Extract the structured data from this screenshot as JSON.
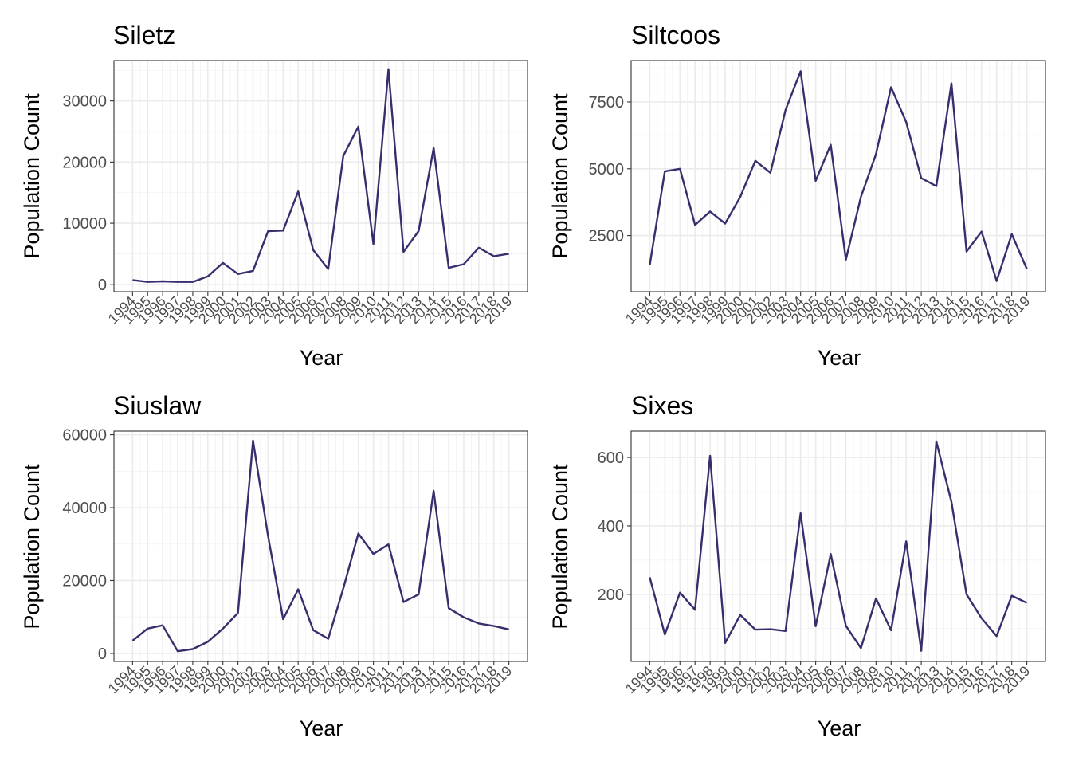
{
  "chart_data": [
    {
      "type": "line",
      "title": "Siletz",
      "xlabel": "Year",
      "ylabel": "Population Count",
      "x": [
        "1994",
        "1995",
        "1996",
        "1997",
        "1998",
        "1999",
        "2000",
        "2001",
        "2002",
        "2003",
        "2004",
        "2005",
        "2006",
        "2007",
        "2008",
        "2009",
        "2010",
        "2011",
        "2012",
        "2013",
        "2014",
        "2015",
        "2016",
        "2017",
        "2018",
        "2019"
      ],
      "series": [
        {
          "values": [
            700,
            400,
            500,
            400,
            400,
            1300,
            3500,
            1700,
            2200,
            8700,
            8800,
            15200,
            5600,
            2500,
            21000,
            25800,
            6600,
            35200,
            5300,
            8700,
            22300,
            2700,
            3300,
            6000,
            4600,
            5000
          ]
        }
      ],
      "ylim": [
        -1200,
        36600
      ],
      "yticks": [
        0,
        10000,
        20000,
        30000
      ],
      "ytick_labels": [
        "0",
        "10000",
        "20000",
        "30000"
      ],
      "grid": true,
      "color": "#3a2d6e"
    },
    {
      "type": "line",
      "title": "Siltcoos",
      "xlabel": "Year",
      "ylabel": "Population Count",
      "x": [
        "1994",
        "1995",
        "1996",
        "1997",
        "1998",
        "1999",
        "2000",
        "2001",
        "2002",
        "2003",
        "2004",
        "2005",
        "2006",
        "2007",
        "2008",
        "2009",
        "2010",
        "2011",
        "2012",
        "2013",
        "2014",
        "2015",
        "2016",
        "2017",
        "2018",
        "2019"
      ],
      "series": [
        {
          "values": [
            1400,
            4900,
            5000,
            2900,
            3400,
            2950,
            3950,
            5300,
            4850,
            7200,
            8650,
            4550,
            5900,
            1600,
            3950,
            5550,
            8050,
            6750,
            4650,
            4350,
            8200,
            1900,
            2650,
            800,
            2550,
            1250
          ]
        }
      ],
      "ylim": [
        400,
        9050
      ],
      "yticks": [
        2500,
        5000,
        7500
      ],
      "ytick_labels": [
        "2500",
        "5000",
        "7500"
      ],
      "grid": true,
      "color": "#3a2d6e"
    },
    {
      "type": "line",
      "title": "Siuslaw",
      "xlabel": "Year",
      "ylabel": "Population Count",
      "x": [
        "1994",
        "1995",
        "1996",
        "1997",
        "1998",
        "1999",
        "2000",
        "2001",
        "2002",
        "2003",
        "2004",
        "2005",
        "2006",
        "2007",
        "2008",
        "2009",
        "2010",
        "2011",
        "2012",
        "2013",
        "2014",
        "2015",
        "2016",
        "2017",
        "2018",
        "2019"
      ],
      "series": [
        {
          "values": [
            3500,
            6800,
            7700,
            600,
            1200,
            3200,
            6800,
            11100,
            58400,
            32200,
            9400,
            17600,
            6400,
            4000,
            17800,
            32900,
            27300,
            29900,
            14100,
            16200,
            44600,
            12400,
            9900,
            8200,
            7500,
            6600
          ]
        }
      ],
      "ylim": [
        -2200,
        61000
      ],
      "yticks": [
        0,
        20000,
        40000,
        60000
      ],
      "ytick_labels": [
        "0",
        "20000",
        "40000",
        "60000"
      ],
      "grid": true,
      "color": "#3a2d6e"
    },
    {
      "type": "line",
      "title": "Sixes",
      "xlabel": "Year",
      "ylabel": "Population Count",
      "x": [
        "1994",
        "1995",
        "1996",
        "1997",
        "1998",
        "1999",
        "2000",
        "2001",
        "2002",
        "2003",
        "2004",
        "2005",
        "2006",
        "2007",
        "2008",
        "2009",
        "2010",
        "2011",
        "2012",
        "2013",
        "2014",
        "2015",
        "2016",
        "2017",
        "2018",
        "2019"
      ],
      "series": [
        {
          "values": [
            250,
            83,
            205,
            155,
            605,
            58,
            140,
            97,
            98,
            93,
            437,
            107,
            318,
            108,
            43,
            188,
            95,
            355,
            35,
            647,
            470,
            200,
            130,
            78,
            196,
            175
          ]
        }
      ],
      "ylim": [
        4,
        677
      ],
      "yticks": [
        200,
        400,
        600
      ],
      "ytick_labels": [
        "200",
        "400",
        "600"
      ],
      "grid": true,
      "color": "#3a2d6e"
    }
  ]
}
